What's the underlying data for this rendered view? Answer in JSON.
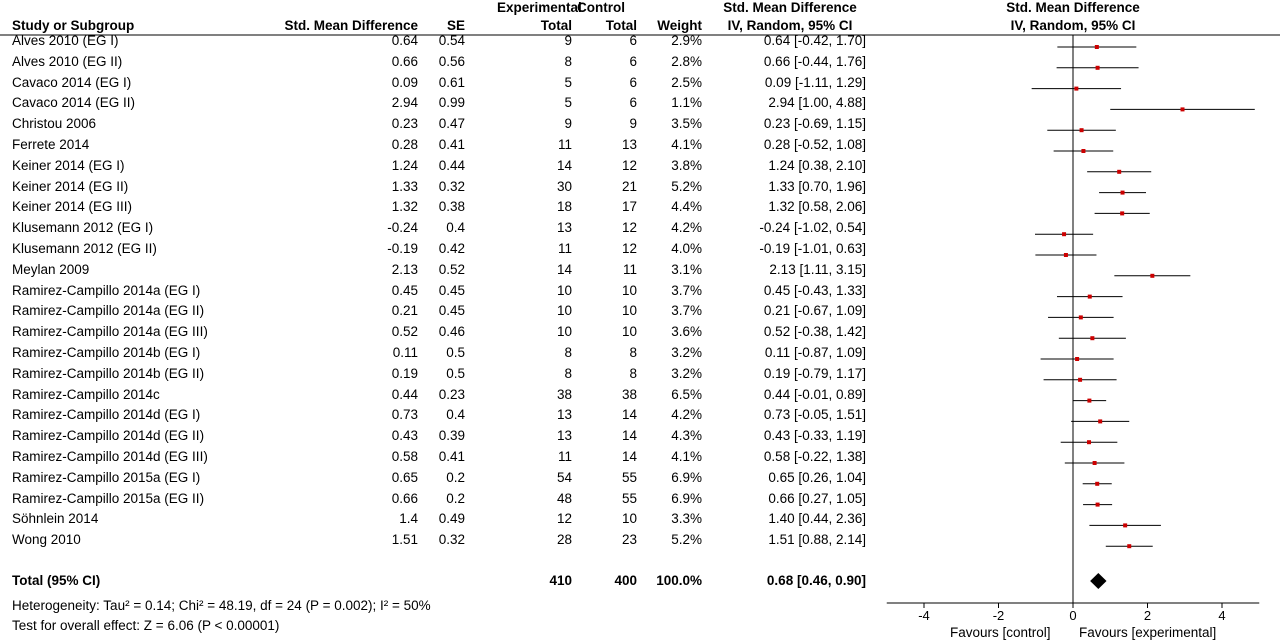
{
  "headers": {
    "study": "Study or Subgroup",
    "smd": "Std. Mean Difference",
    "se": "SE",
    "experimental": "Experimental",
    "exp_total": "Total",
    "control": "Control",
    "ctl_total": "Total",
    "weight": "Weight",
    "ci_title": "Std. Mean Difference",
    "ci_method": "IV, Random, 95% CI",
    "plot_title": "Std. Mean Difference",
    "plot_method": "IV, Random, 95% CI"
  },
  "studies": [
    {
      "name": "Alves 2010 (EG I)",
      "smd": "0.64",
      "se": "0.54",
      "exp": "9",
      "ctl": "6",
      "weight": "2.9%",
      "ci": "0.64 [-0.42, 1.70]"
    },
    {
      "name": "Alves 2010 (EG II)",
      "smd": "0.66",
      "se": "0.56",
      "exp": "8",
      "ctl": "6",
      "weight": "2.8%",
      "ci": "0.66 [-0.44, 1.76]"
    },
    {
      "name": "Cavaco 2014 (EG I)",
      "smd": "0.09",
      "se": "0.61",
      "exp": "5",
      "ctl": "6",
      "weight": "2.5%",
      "ci": "0.09 [-1.11, 1.29]"
    },
    {
      "name": "Cavaco 2014 (EG II)",
      "smd": "2.94",
      "se": "0.99",
      "exp": "5",
      "ctl": "6",
      "weight": "1.1%",
      "ci": "2.94 [1.00, 4.88]"
    },
    {
      "name": "Christou 2006",
      "smd": "0.23",
      "se": "0.47",
      "exp": "9",
      "ctl": "9",
      "weight": "3.5%",
      "ci": "0.23 [-0.69, 1.15]"
    },
    {
      "name": "Ferrete 2014",
      "smd": "0.28",
      "se": "0.41",
      "exp": "11",
      "ctl": "13",
      "weight": "4.1%",
      "ci": "0.28 [-0.52, 1.08]"
    },
    {
      "name": "Keiner 2014 (EG I)",
      "smd": "1.24",
      "se": "0.44",
      "exp": "14",
      "ctl": "12",
      "weight": "3.8%",
      "ci": "1.24 [0.38, 2.10]"
    },
    {
      "name": "Keiner 2014 (EG II)",
      "smd": "1.33",
      "se": "0.32",
      "exp": "30",
      "ctl": "21",
      "weight": "5.2%",
      "ci": "1.33 [0.70, 1.96]"
    },
    {
      "name": "Keiner 2014 (EG III)",
      "smd": "1.32",
      "se": "0.38",
      "exp": "18",
      "ctl": "17",
      "weight": "4.4%",
      "ci": "1.32 [0.58, 2.06]"
    },
    {
      "name": "Klusemann 2012 (EG I)",
      "smd": "-0.24",
      "se": "0.4",
      "exp": "13",
      "ctl": "12",
      "weight": "4.2%",
      "ci": "-0.24 [-1.02, 0.54]"
    },
    {
      "name": "Klusemann 2012 (EG II)",
      "smd": "-0.19",
      "se": "0.42",
      "exp": "11",
      "ctl": "12",
      "weight": "4.0%",
      "ci": "-0.19 [-1.01, 0.63]"
    },
    {
      "name": "Meylan 2009",
      "smd": "2.13",
      "se": "0.52",
      "exp": "14",
      "ctl": "11",
      "weight": "3.1%",
      "ci": "2.13 [1.11, 3.15]"
    },
    {
      "name": "Ramirez-Campillo 2014a (EG I)",
      "smd": "0.45",
      "se": "0.45",
      "exp": "10",
      "ctl": "10",
      "weight": "3.7%",
      "ci": "0.45 [-0.43, 1.33]"
    },
    {
      "name": "Ramirez-Campillo 2014a (EG II)",
      "smd": "0.21",
      "se": "0.45",
      "exp": "10",
      "ctl": "10",
      "weight": "3.7%",
      "ci": "0.21 [-0.67, 1.09]"
    },
    {
      "name": "Ramirez-Campillo 2014a (EG III)",
      "smd": "0.52",
      "se": "0.46",
      "exp": "10",
      "ctl": "10",
      "weight": "3.6%",
      "ci": "0.52 [-0.38, 1.42]"
    },
    {
      "name": "Ramirez-Campillo 2014b (EG I)",
      "smd": "0.11",
      "se": "0.5",
      "exp": "8",
      "ctl": "8",
      "weight": "3.2%",
      "ci": "0.11 [-0.87, 1.09]"
    },
    {
      "name": "Ramirez-Campillo 2014b (EG II)",
      "smd": "0.19",
      "se": "0.5",
      "exp": "8",
      "ctl": "8",
      "weight": "3.2%",
      "ci": "0.19 [-0.79, 1.17]"
    },
    {
      "name": "Ramirez-Campillo 2014c",
      "smd": "0.44",
      "se": "0.23",
      "exp": "38",
      "ctl": "38",
      "weight": "6.5%",
      "ci": "0.44 [-0.01, 0.89]"
    },
    {
      "name": "Ramirez-Campillo 2014d (EG I)",
      "smd": "0.73",
      "se": "0.4",
      "exp": "13",
      "ctl": "14",
      "weight": "4.2%",
      "ci": "0.73 [-0.05, 1.51]"
    },
    {
      "name": "Ramirez-Campillo 2014d (EG II)",
      "smd": "0.43",
      "se": "0.39",
      "exp": "13",
      "ctl": "14",
      "weight": "4.3%",
      "ci": "0.43 [-0.33, 1.19]"
    },
    {
      "name": "Ramirez-Campillo 2014d (EG III)",
      "smd": "0.58",
      "se": "0.41",
      "exp": "11",
      "ctl": "14",
      "weight": "4.1%",
      "ci": "0.58 [-0.22, 1.38]"
    },
    {
      "name": "Ramirez-Campillo 2015a (EG I)",
      "smd": "0.65",
      "se": "0.2",
      "exp": "54",
      "ctl": "55",
      "weight": "6.9%",
      "ci": "0.65 [0.26, 1.04]"
    },
    {
      "name": "Ramirez-Campillo 2015a (EG II)",
      "smd": "0.66",
      "se": "0.2",
      "exp": "48",
      "ctl": "55",
      "weight": "6.9%",
      "ci": "0.66 [0.27, 1.05]"
    },
    {
      "name": "Söhnlein 2014",
      "smd": "1.4",
      "se": "0.49",
      "exp": "12",
      "ctl": "10",
      "weight": "3.3%",
      "ci": "1.40 [0.44, 2.36]"
    },
    {
      "name": "Wong 2010",
      "smd": "1.51",
      "se": "0.32",
      "exp": "28",
      "ctl": "23",
      "weight": "5.2%",
      "ci": "1.51 [0.88, 2.14]"
    }
  ],
  "total": {
    "label": "Total (95% CI)",
    "exp": "410",
    "ctl": "400",
    "weight": "100.0%",
    "ci": "0.68 [0.46, 0.90]"
  },
  "heterogeneity": "Heterogeneity: Tau² = 0.14; Chi² = 48.19, df = 24 (P = 0.002); I² = 50%",
  "overall_effect": "Test for overall effect: Z = 6.06 (P < 0.00001)",
  "axis": {
    "ticks": [
      "-4",
      "-2",
      "0",
      "2",
      "4"
    ],
    "favours_left": "Favours [control]",
    "favours_right": "Favours [experimental]"
  },
  "colors": {
    "point": "#cc0000",
    "line": "#000000",
    "diamond": "#000000"
  },
  "chart_data": {
    "type": "forest",
    "title": "Std. Mean Difference",
    "subtitle": "IV, Random, 95% CI",
    "xlim": [
      -5,
      5
    ],
    "xticks": [
      -4,
      -2,
      0,
      2,
      4
    ],
    "grid": false,
    "points": [
      {
        "est": 0.64,
        "lo": -0.42,
        "hi": 1.7
      },
      {
        "est": 0.66,
        "lo": -0.44,
        "hi": 1.76
      },
      {
        "est": 0.09,
        "lo": -1.11,
        "hi": 1.29
      },
      {
        "est": 2.94,
        "lo": 1.0,
        "hi": 4.88
      },
      {
        "est": 0.23,
        "lo": -0.69,
        "hi": 1.15
      },
      {
        "est": 0.28,
        "lo": -0.52,
        "hi": 1.08
      },
      {
        "est": 1.24,
        "lo": 0.38,
        "hi": 2.1
      },
      {
        "est": 1.33,
        "lo": 0.7,
        "hi": 1.96
      },
      {
        "est": 1.32,
        "lo": 0.58,
        "hi": 2.06
      },
      {
        "est": -0.24,
        "lo": -1.02,
        "hi": 0.54
      },
      {
        "est": -0.19,
        "lo": -1.01,
        "hi": 0.63
      },
      {
        "est": 2.13,
        "lo": 1.11,
        "hi": 3.15
      },
      {
        "est": 0.45,
        "lo": -0.43,
        "hi": 1.33
      },
      {
        "est": 0.21,
        "lo": -0.67,
        "hi": 1.09
      },
      {
        "est": 0.52,
        "lo": -0.38,
        "hi": 1.42
      },
      {
        "est": 0.11,
        "lo": -0.87,
        "hi": 1.09
      },
      {
        "est": 0.19,
        "lo": -0.79,
        "hi": 1.17
      },
      {
        "est": 0.44,
        "lo": -0.01,
        "hi": 0.89
      },
      {
        "est": 0.73,
        "lo": -0.05,
        "hi": 1.51
      },
      {
        "est": 0.43,
        "lo": -0.33,
        "hi": 1.19
      },
      {
        "est": 0.58,
        "lo": -0.22,
        "hi": 1.38
      },
      {
        "est": 0.65,
        "lo": 0.26,
        "hi": 1.04
      },
      {
        "est": 0.66,
        "lo": 0.27,
        "hi": 1.05
      },
      {
        "est": 1.4,
        "lo": 0.44,
        "hi": 2.36
      },
      {
        "est": 1.51,
        "lo": 0.88,
        "hi": 2.14
      }
    ],
    "summary": {
      "est": 0.68,
      "lo": 0.46,
      "hi": 0.9
    }
  }
}
